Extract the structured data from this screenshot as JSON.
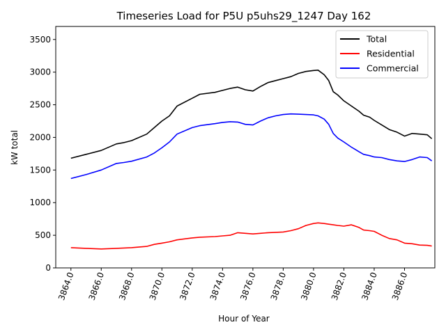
{
  "chart_data": {
    "type": "line",
    "title": "Timeseries Load for P5U p5uhs29_1247  Day 162",
    "xlabel": "Hour of Year",
    "ylabel": "kW total",
    "xlim": [
      3863.0,
      3888.0
    ],
    "ylim": [
      0,
      3700
    ],
    "x_ticks": [
      3864.0,
      3866.0,
      3868.0,
      3870.0,
      3872.0,
      3874.0,
      3876.0,
      3878.0,
      3880.0,
      3882.0,
      3884.0,
      3886.0
    ],
    "x_tick_labels": [
      "3864.0",
      "3866.0",
      "3868.0",
      "3870.0",
      "3872.0",
      "3874.0",
      "3876.0",
      "3878.0",
      "3880.0",
      "3882.0",
      "3884.0",
      "3886.0"
    ],
    "y_ticks": [
      0,
      500,
      1000,
      1500,
      2000,
      2500,
      3000,
      3500
    ],
    "y_tick_labels": [
      "0",
      "500",
      "1000",
      "1500",
      "2000",
      "2500",
      "3000",
      "3500"
    ],
    "legend_position": "top-right",
    "x": [
      3864.0,
      3865.0,
      3866.0,
      3867.0,
      3867.5,
      3868.0,
      3869.0,
      3869.5,
      3870.0,
      3870.5,
      3871.0,
      3872.0,
      3872.5,
      3873.5,
      3874.0,
      3874.5,
      3875.0,
      3875.5,
      3876.0,
      3876.5,
      3877.0,
      3877.5,
      3878.0,
      3878.5,
      3879.0,
      3879.5,
      3880.0,
      3880.3,
      3880.7,
      3881.0,
      3881.3,
      3881.6,
      3882.0,
      3882.5,
      3883.0,
      3883.3,
      3883.7,
      3884.0,
      3884.5,
      3885.0,
      3885.5,
      3886.0,
      3886.5,
      3887.0,
      3887.5,
      3887.8
    ],
    "series": [
      {
        "name": "Total",
        "color": "#000000",
        "values": [
          1680,
          1740,
          1800,
          1900,
          1920,
          1950,
          2050,
          2150,
          2250,
          2330,
          2480,
          2600,
          2660,
          2690,
          2720,
          2750,
          2770,
          2730,
          2710,
          2780,
          2840,
          2870,
          2900,
          2930,
          2980,
          3010,
          3025,
          3030,
          2960,
          2870,
          2700,
          2650,
          2560,
          2480,
          2400,
          2340,
          2310,
          2260,
          2190,
          2120,
          2080,
          2020,
          2060,
          2050,
          2040,
          1980
        ]
      },
      {
        "name": "Residential",
        "color": "#ff0000",
        "values": [
          310,
          300,
          290,
          300,
          305,
          310,
          330,
          360,
          380,
          400,
          430,
          460,
          470,
          480,
          490,
          500,
          540,
          530,
          520,
          530,
          540,
          545,
          550,
          570,
          600,
          650,
          680,
          690,
          680,
          670,
          660,
          650,
          640,
          660,
          620,
          580,
          570,
          560,
          500,
          450,
          430,
          380,
          370,
          350,
          345,
          335
        ]
      },
      {
        "name": "Commercial",
        "color": "#0000ff",
        "values": [
          1370,
          1430,
          1500,
          1600,
          1615,
          1635,
          1700,
          1760,
          1840,
          1930,
          2050,
          2150,
          2180,
          2210,
          2230,
          2240,
          2235,
          2200,
          2190,
          2250,
          2300,
          2330,
          2350,
          2360,
          2355,
          2350,
          2345,
          2330,
          2280,
          2200,
          2060,
          1990,
          1930,
          1850,
          1780,
          1740,
          1720,
          1700,
          1690,
          1660,
          1640,
          1630,
          1660,
          1700,
          1690,
          1640
        ]
      }
    ]
  }
}
